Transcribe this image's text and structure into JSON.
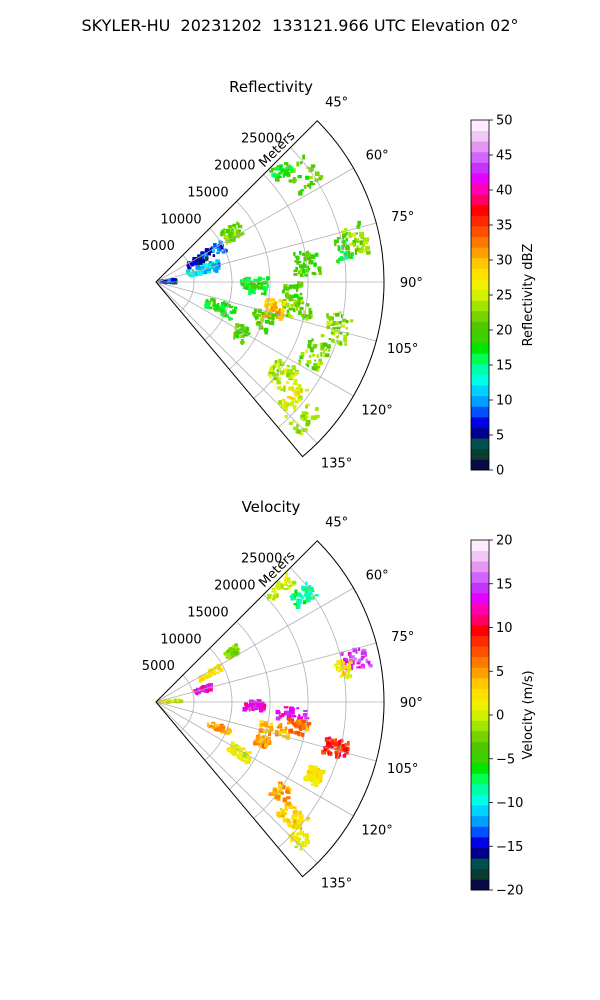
{
  "figure": {
    "title": "SKYLER-HU  20231202  133121.966 UTC Elevation 02°"
  },
  "chart_data": [
    {
      "type": "heatmap",
      "subtype": "radar-sector-ppi",
      "title": "Reflectivity",
      "range_label": "Meters",
      "range_ticks": [
        5000,
        10000,
        15000,
        20000,
        25000
      ],
      "range_tick_labels": [
        "5000",
        "10000",
        "15000",
        "20000",
        "25000"
      ],
      "rmax": 30000,
      "azimuth_range": [
        45,
        140
      ],
      "azimuth_ticks": [
        45,
        60,
        75,
        90,
        105,
        120,
        135
      ],
      "azimuth_tick_labels": [
        "45°",
        "60°",
        "75°",
        "90°",
        "105°",
        "120°",
        "135°"
      ],
      "grid": true,
      "colorbar": {
        "label": "Reflectivity dBZ",
        "range": [
          0,
          50
        ],
        "ticks": [
          0,
          5,
          10,
          15,
          20,
          25,
          30,
          35,
          40,
          45,
          50
        ],
        "tick_labels": [
          "0",
          "5",
          "10",
          "15",
          "20",
          "25",
          "30",
          "35",
          "40",
          "45",
          "50"
        ],
        "colors": [
          "#0a0a46",
          "#0a3c32",
          "#005050",
          "#00008c",
          "#0000e6",
          "#0050ff",
          "#00a0ff",
          "#00d2ff",
          "#00ffe6",
          "#00ffaa",
          "#00ff50",
          "#00e600",
          "#3cd200",
          "#50c800",
          "#78d200",
          "#a0e600",
          "#d2f000",
          "#f0f000",
          "#ffe100",
          "#ffc800",
          "#ffa000",
          "#ff7800",
          "#ff5000",
          "#ff2800",
          "#ff0000",
          "#ff0064",
          "#ff00b4",
          "#e600ff",
          "#c832ff",
          "#d264ff",
          "#e696f0",
          "#f0c8f5",
          "#ffebff"
        ]
      },
      "echo_regions": [
        {
          "az": 47,
          "r": 22000,
          "dz": 18
        },
        {
          "az": 54,
          "r": 24000,
          "dz": 20
        },
        {
          "az": 57,
          "r": 12000,
          "dz": 22
        },
        {
          "az": 62,
          "r": 8000,
          "dz": 8
        },
        {
          "az": 63,
          "r": 6000,
          "dz": 5
        },
        {
          "az": 75,
          "r": 6500,
          "dz": 12
        },
        {
          "az": 78,
          "r": 27000,
          "dz": 22
        },
        {
          "az": 80,
          "r": 25000,
          "dz": 18
        },
        {
          "az": 83,
          "r": 20000,
          "dz": 20
        },
        {
          "az": 88,
          "r": 1500,
          "dz": 7
        },
        {
          "az": 92,
          "r": 13000,
          "dz": 18
        },
        {
          "az": 95,
          "r": 18000,
          "dz": 20
        },
        {
          "az": 100,
          "r": 19000,
          "dz": 22
        },
        {
          "az": 103,
          "r": 16000,
          "dz": 30
        },
        {
          "az": 104,
          "r": 24500,
          "dz": 22
        },
        {
          "az": 110,
          "r": 15000,
          "dz": 20
        },
        {
          "az": 112,
          "r": 9000,
          "dz": 18
        },
        {
          "az": 115,
          "r": 23000,
          "dz": 22
        },
        {
          "az": 121,
          "r": 13000,
          "dz": 20
        },
        {
          "az": 126,
          "r": 20500,
          "dz": 24
        },
        {
          "az": 130,
          "r": 23500,
          "dz": 26
        },
        {
          "az": 133,
          "r": 26000,
          "dz": 24
        }
      ]
    },
    {
      "type": "heatmap",
      "subtype": "radar-sector-ppi",
      "title": "Velocity",
      "range_label": "Meters",
      "range_ticks": [
        5000,
        10000,
        15000,
        20000,
        25000
      ],
      "range_tick_labels": [
        "5000",
        "10000",
        "15000",
        "20000",
        "25000"
      ],
      "rmax": 30000,
      "azimuth_range": [
        45,
        140
      ],
      "azimuth_ticks": [
        45,
        60,
        75,
        90,
        105,
        120,
        135
      ],
      "azimuth_tick_labels": [
        "45°",
        "60°",
        "75°",
        "90°",
        "105°",
        "120°",
        "135°"
      ],
      "grid": true,
      "colorbar": {
        "label": "Velocity (m/s)",
        "range": [
          -20,
          20
        ],
        "ticks": [
          -20,
          -15,
          -10,
          -5,
          0,
          5,
          10,
          15,
          20
        ],
        "tick_labels": [
          "−20",
          "−15",
          "−10",
          "−5",
          "0",
          "5",
          "10",
          "15",
          "20"
        ],
        "colors": [
          "#0a0a46",
          "#0a3c32",
          "#005050",
          "#00008c",
          "#0000e6",
          "#0050ff",
          "#00a0ff",
          "#00d2ff",
          "#00ffe6",
          "#00ffaa",
          "#00ff50",
          "#00e600",
          "#3cd200",
          "#50c800",
          "#78d200",
          "#a0e600",
          "#d2f000",
          "#f0f000",
          "#ffe100",
          "#ffc800",
          "#ffa000",
          "#ff7800",
          "#ff5000",
          "#ff2800",
          "#ff0000",
          "#ff0064",
          "#ff00b4",
          "#e600ff",
          "#c832ff",
          "#d264ff",
          "#e696f0",
          "#f0c8f5",
          "#ffebff"
        ]
      },
      "echo_regions": [
        {
          "az": 47,
          "r": 22000,
          "v": 0
        },
        {
          "az": 54,
          "r": 24000,
          "v": -8
        },
        {
          "az": 57,
          "r": 12000,
          "v": -2
        },
        {
          "az": 62,
          "r": 8000,
          "v": 2
        },
        {
          "az": 75,
          "r": 6500,
          "v": 13
        },
        {
          "az": 78,
          "r": 27000,
          "v": 14
        },
        {
          "az": 80,
          "r": 25000,
          "v": 2
        },
        {
          "az": 88,
          "r": 1500,
          "v": 1
        },
        {
          "az": 92,
          "r": 13000,
          "v": 13
        },
        {
          "az": 95,
          "r": 18000,
          "v": 13
        },
        {
          "az": 100,
          "r": 19000,
          "v": 6
        },
        {
          "az": 103,
          "r": 16000,
          "v": 4
        },
        {
          "az": 104,
          "r": 24500,
          "v": 9
        },
        {
          "az": 110,
          "r": 15000,
          "v": 5
        },
        {
          "az": 112,
          "r": 9000,
          "v": 5
        },
        {
          "az": 115,
          "r": 23000,
          "v": 2
        },
        {
          "az": 121,
          "r": 13000,
          "v": 1
        },
        {
          "az": 126,
          "r": 20500,
          "v": 4
        },
        {
          "az": 130,
          "r": 23500,
          "v": 3
        },
        {
          "az": 133,
          "r": 26000,
          "v": 1
        }
      ]
    }
  ]
}
